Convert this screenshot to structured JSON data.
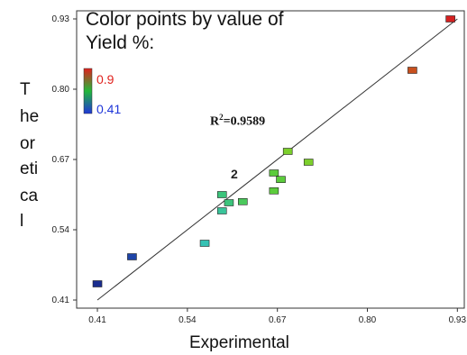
{
  "chart_data": {
    "type": "scatter",
    "xlabel": "Experimental",
    "ylabel_fragments": [
      "T",
      "he",
      "or",
      "eti",
      "ca",
      "l"
    ],
    "xlim": [
      0.38,
      0.94
    ],
    "ylim": [
      0.395,
      0.945
    ],
    "x_ticks": [
      "0.41",
      "0.54",
      "0.67",
      "0.80",
      "0.93"
    ],
    "y_ticks": [
      "0.93",
      "0.80",
      "0.67",
      "0.54",
      "0.41"
    ],
    "legend": {
      "title": "Color points by value of Yield %:",
      "max_label": "0.9",
      "min_label": "0.41",
      "max_color": "#e0221e",
      "mid_color": "#22b83a",
      "min_color": "#1f36d8"
    },
    "annotation": {
      "r2_prefix": "R",
      "r2_sup": "2",
      "r2_value": "=0.9589"
    },
    "duplicate_marker": "2",
    "fit_line": {
      "x": [
        0.41,
        0.93
      ],
      "y": [
        0.41,
        0.93
      ]
    },
    "points": [
      {
        "x": 0.41,
        "y": 0.44,
        "color": "#1a2d8f"
      },
      {
        "x": 0.46,
        "y": 0.49,
        "color": "#1e44a8"
      },
      {
        "x": 0.565,
        "y": 0.515,
        "color": "#35c2b4"
      },
      {
        "x": 0.59,
        "y": 0.575,
        "color": "#3ac49a"
      },
      {
        "x": 0.59,
        "y": 0.605,
        "color": "#3cc47c"
      },
      {
        "x": 0.6,
        "y": 0.59,
        "color": "#3cc47c"
      },
      {
        "x": 0.62,
        "y": 0.592,
        "color": "#4bc85c"
      },
      {
        "x": 0.665,
        "y": 0.612,
        "color": "#5ccc3c"
      },
      {
        "x": 0.665,
        "y": 0.645,
        "color": "#5ccc3c"
      },
      {
        "x": 0.675,
        "y": 0.633,
        "color": "#5ccc3c"
      },
      {
        "x": 0.685,
        "y": 0.685,
        "color": "#7ccf2c"
      },
      {
        "x": 0.715,
        "y": 0.665,
        "color": "#7ccf2c"
      },
      {
        "x": 0.865,
        "y": 0.835,
        "color": "#c8501e"
      },
      {
        "x": 0.92,
        "y": 0.93,
        "color": "#d42020"
      }
    ]
  }
}
